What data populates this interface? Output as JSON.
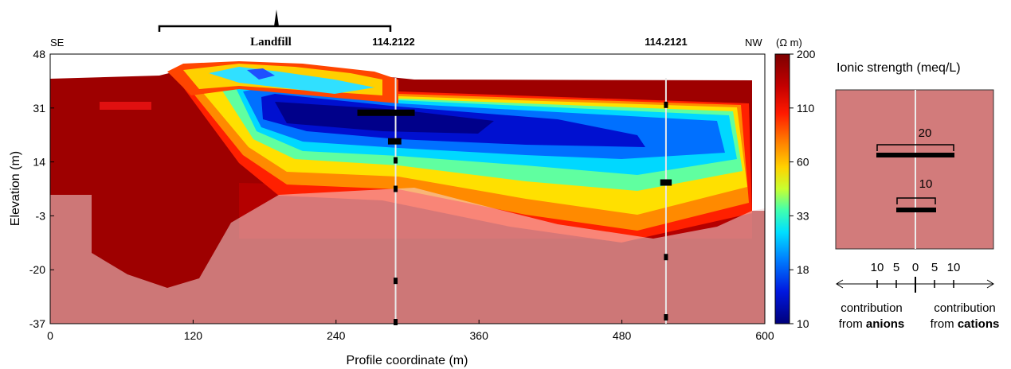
{
  "chart_data": {
    "type": "heatmap",
    "title": "",
    "xlabel": "Profile coordinate (m)",
    "ylabel": "Elevation (m)",
    "xlim": [
      0,
      600
    ],
    "ylim": [
      -37,
      48
    ],
    "x_ticks": [
      "0",
      "120",
      "240",
      "360",
      "480",
      "600"
    ],
    "y_ticks": [
      "48",
      "31",
      "14",
      "-3",
      "-20",
      "-37"
    ],
    "direction_labels": {
      "left": "SE",
      "right": "NW"
    },
    "landfill_label": "Landfill",
    "landfill_x_range": [
      92,
      286
    ],
    "wells": [
      {
        "id": "114.2122",
        "x": 290,
        "bars": [
          {
            "elevation": 29.5,
            "anion": 20,
            "cation": 10
          },
          {
            "elevation": 20.5,
            "anion": 4,
            "cation": 3
          },
          {
            "elevation": 14.5,
            "anion": 1,
            "cation": 1
          },
          {
            "elevation": 5.5,
            "anion": 1,
            "cation": 1
          },
          {
            "elevation": -23.5,
            "anion": 1,
            "cation": 1
          },
          {
            "elevation": -36.5,
            "anion": 1,
            "cation": 1
          }
        ]
      },
      {
        "id": "114.2121",
        "x": 517,
        "bars": [
          {
            "elevation": 32,
            "anion": 1,
            "cation": 1
          },
          {
            "elevation": 7.5,
            "anion": 3,
            "cation": 3
          },
          {
            "elevation": -16,
            "anion": 1,
            "cation": 1
          },
          {
            "elevation": -35,
            "anion": 1,
            "cation": 1
          }
        ]
      }
    ],
    "colorbar": {
      "unit": "(Ω m)",
      "labels": [
        "200",
        "110",
        "60",
        "33",
        "18",
        "10"
      ]
    }
  },
  "legend": {
    "title": "Ionic strength  (meq/L)",
    "bar_labels": [
      "20",
      "10"
    ],
    "scale_labels": [
      "10",
      "5",
      "0",
      "5",
      "10"
    ],
    "anions_prefix": "contribution",
    "anions_from": "from ",
    "anions_word": "anions",
    "cations_prefix": "contribution",
    "cations_from": "from ",
    "cations_word": "cations"
  }
}
